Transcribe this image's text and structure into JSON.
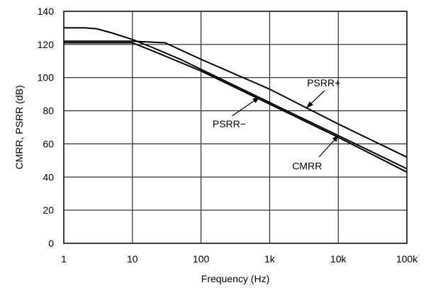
{
  "chart_data": {
    "type": "line",
    "title": "",
    "xlabel": "Frequency (Hz)",
    "ylabel": "CMRR, PSRR (dB)",
    "xscale": "log",
    "xlim": [
      1,
      100000
    ],
    "ylim": [
      0,
      140
    ],
    "grid": true,
    "x_ticks": [
      {
        "value": 1,
        "label": "1"
      },
      {
        "value": 10,
        "label": "10"
      },
      {
        "value": 100,
        "label": "100"
      },
      {
        "value": 1000,
        "label": "1k"
      },
      {
        "value": 10000,
        "label": "10k"
      },
      {
        "value": 100000,
        "label": "100k"
      }
    ],
    "y_ticks": [
      0,
      20,
      40,
      60,
      80,
      100,
      120,
      140
    ],
    "series": [
      {
        "name": "PSRR+",
        "x": [
          1,
          3,
          10,
          30,
          100,
          1000,
          10000,
          100000
        ],
        "y": [
          122,
          122,
          122,
          121,
          111,
          93,
          72,
          52
        ]
      },
      {
        "name": "PSRR−",
        "x": [
          1,
          2,
          3,
          5,
          10,
          20,
          50,
          100,
          1000,
          10000,
          100000
        ],
        "y": [
          130,
          130,
          129.5,
          127,
          123,
          118,
          111,
          105,
          85,
          65,
          45
        ]
      },
      {
        "name": "CMRR",
        "x": [
          1,
          3,
          10,
          20,
          100,
          1000,
          10000,
          100000
        ],
        "y": [
          121,
          121,
          121,
          116,
          104,
          84,
          64,
          43
        ]
      }
    ],
    "annotations": [
      {
        "text": "PSRR+",
        "series": "PSRR+",
        "target_x": 3500,
        "target_y": 82
      },
      {
        "text": "PSRR−",
        "series": "PSRR−",
        "target_x": 700,
        "target_y": 88
      },
      {
        "text": "CMRR",
        "series": "CMRR",
        "target_x": 10000,
        "target_y": 65
      }
    ]
  }
}
